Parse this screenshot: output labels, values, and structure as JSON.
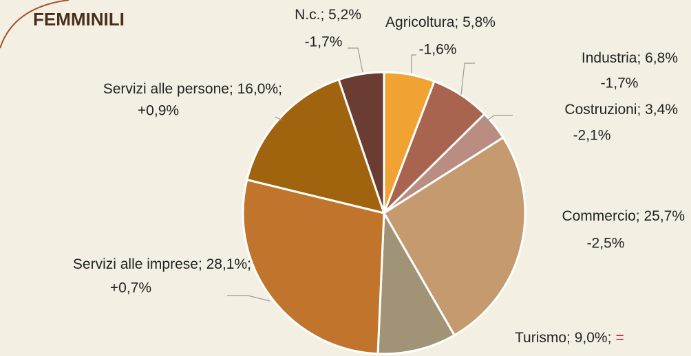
{
  "chart_data": {
    "type": "pie",
    "title": "FEMMINILI",
    "values": [
      5.8,
      6.8,
      3.4,
      25.7,
      9.0,
      28.1,
      16.0,
      5.2
    ],
    "value_labels": [
      "Agricoltura; 5,8%",
      "Industria; 6,8%",
      "Costruzioni; 3,4%",
      "Commercio; 25,7%",
      "Turismo; 9,0%;",
      "Servizi alle imprese; 28,1%;",
      "Servizi alle persone; 16,0%;",
      "N.c.; 5,2%"
    ],
    "changes": [
      "-1,6%",
      "-1,7%",
      "-2,1%",
      "-2,5%",
      "=",
      "+0,7%",
      "+0,9%",
      "-1,7%"
    ],
    "change_colors": [
      "#ff0000",
      "#222222",
      "#ff0000",
      "#ff0000",
      "#ff0000",
      "#ff0000",
      "#ff0000",
      "#ff0000"
    ],
    "colors": [
      "#f0a232",
      "#a8644e",
      "#b98d82",
      "#c49a6e",
      "#a19476",
      "#c1742c",
      "#a1640e",
      "#6b3c31"
    ]
  }
}
